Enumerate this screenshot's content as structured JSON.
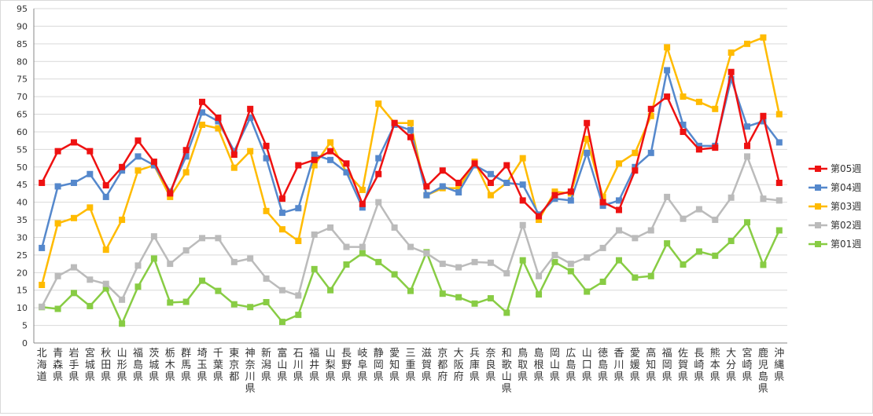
{
  "chart_data": {
    "type": "line",
    "title": "",
    "xlabel": "",
    "ylabel": "",
    "ylim": [
      0,
      95
    ],
    "yticks": [
      0,
      5,
      10,
      15,
      20,
      25,
      30,
      35,
      40,
      45,
      50,
      55,
      60,
      65,
      70,
      75,
      80,
      85,
      90,
      95
    ],
    "grid": "horizontal",
    "legend": "right",
    "categories": [
      "北海道",
      "青森県",
      "岩手県",
      "宮城県",
      "秋田県",
      "山形県",
      "福島県",
      "茨城県",
      "栃木県",
      "群馬県",
      "埼玉県",
      "千葉県",
      "東京都",
      "神奈川県",
      "新潟県",
      "富山県",
      "石川県",
      "福井県",
      "山梨県",
      "長野県",
      "岐阜県",
      "静岡県",
      "愛知県",
      "三重県",
      "滋賀県",
      "京都府",
      "大阪府",
      "兵庫県",
      "奈良県",
      "和歌山県",
      "鳥取県",
      "島根県",
      "岡山県",
      "広島県",
      "山口県",
      "徳島県",
      "香川県",
      "愛媛県",
      "高知県",
      "福岡県",
      "佐賀県",
      "長崎県",
      "熊本県",
      "大分県",
      "宮崎県",
      "鹿児島県",
      "沖縄県"
    ],
    "series": [
      {
        "name": "第05週",
        "color": "#ee1111",
        "marker": "square",
        "values": [
          45.5,
          54.5,
          57,
          54.5,
          44.8,
          50,
          57.5,
          51.5,
          42.5,
          54.8,
          68.5,
          64,
          53.5,
          66.5,
          56,
          41,
          50.5,
          52,
          54.5,
          51,
          39.5,
          48,
          62.5,
          58.5,
          44.5,
          49,
          45.5,
          51,
          45.5,
          50.5,
          40.5,
          36,
          42,
          43,
          62.5,
          40,
          37.8,
          49,
          66.5,
          70,
          60,
          55,
          55.5,
          77,
          56,
          64.5,
          45.5
        ]
      },
      {
        "name": "第04週",
        "color": "#5588cc",
        "marker": "square",
        "values": [
          27,
          44.5,
          45.5,
          48,
          41.5,
          49,
          53,
          50.5,
          43,
          53,
          65.5,
          63,
          54.5,
          64,
          52.5,
          37,
          38.3,
          53.5,
          52,
          48.5,
          38.5,
          52.5,
          62,
          60.5,
          42,
          44.5,
          42.8,
          50.5,
          48,
          45.5,
          45,
          36.5,
          41,
          40.5,
          54,
          39,
          40.5,
          50,
          54,
          77.5,
          62,
          56,
          56,
          75,
          61.5,
          63,
          57
        ]
      },
      {
        "name": "第03週",
        "color": "#ffbb00",
        "marker": "square",
        "values": [
          16.5,
          34,
          35.5,
          38.5,
          26.5,
          35,
          49,
          50.5,
          41.5,
          48.5,
          62,
          61,
          49.8,
          54.5,
          37.5,
          32.3,
          29,
          50.5,
          57,
          48.5,
          43.5,
          68,
          62.5,
          62.5,
          42,
          44,
          44,
          51.5,
          42,
          45.5,
          52.5,
          35,
          43,
          42.5,
          58,
          41.5,
          51,
          54,
          64.5,
          84,
          70,
          68.5,
          66.5,
          82.5,
          85,
          86.8,
          65
        ]
      },
      {
        "name": "第02週",
        "color": "#bbbbbb",
        "marker": "square",
        "values": [
          10.3,
          19,
          21.5,
          18,
          16.8,
          12.3,
          22,
          30.3,
          22.5,
          26.3,
          29.8,
          29.8,
          23,
          24,
          18.3,
          15,
          13.5,
          30.8,
          32.8,
          27.3,
          27.3,
          40,
          32.8,
          27.3,
          25.5,
          22.5,
          21.5,
          23,
          22.8,
          19.8,
          33.5,
          19,
          25,
          22.5,
          24.3,
          27,
          32,
          29.8,
          32,
          41.5,
          35.3,
          38,
          35,
          41.3,
          53,
          41,
          40.5
        ]
      },
      {
        "name": "第01週",
        "color": "#88cc44",
        "marker": "square",
        "values": [
          10.2,
          9.7,
          14.2,
          10.5,
          15.5,
          5.5,
          16,
          24,
          11.5,
          11.7,
          17.7,
          14.8,
          11,
          10.2,
          11.6,
          6,
          8,
          21,
          15,
          22.3,
          25.5,
          23,
          19.5,
          14.8,
          25.8,
          14,
          13,
          11.2,
          12.7,
          8.6,
          23.5,
          13.8,
          23,
          20.4,
          14.6,
          17.4,
          23.5,
          18.6,
          19,
          28.3,
          22.3,
          26,
          24.8,
          29,
          34.3,
          22.2,
          32
        ]
      }
    ]
  }
}
